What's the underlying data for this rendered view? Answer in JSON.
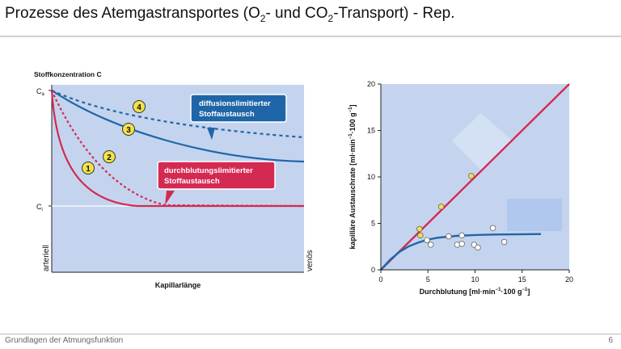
{
  "slide": {
    "title_main": "Prozesse des Atemgastransportes  (O",
    "title_sub1": "2",
    "title_mid": "- und CO",
    "title_sub2": "2",
    "title_end": "-Transport)  -  Rep.",
    "footer": "Grundlagen der Atmungsfunktion",
    "page_number": "6"
  },
  "colors": {
    "plot_bg": "#c4d4ee",
    "blue": "#1f66a8",
    "red": "#d42a52",
    "marker_yellow": "#f2e14a",
    "marker_white": "#ffffff"
  },
  "left_panel": {
    "ylabel": "Stoffkonzentration C",
    "y_tick_top": "C",
    "y_tick_top_sub": "a",
    "y_tick_mid": "C",
    "y_tick_mid_sub": "i",
    "xlabel": "Kapillarlänge",
    "left_edge_label": "arteriell",
    "right_edge_label": "venös",
    "callout_blue_line1": "diffusionslimitierter",
    "callout_blue_line2": "Stoffaustausch",
    "callout_red_line1": "durchblutungslimitierter",
    "callout_red_line2": "Stoffaustausch",
    "curve_labels": [
      "1",
      "2",
      "3",
      "4"
    ]
  },
  "chart_data": {
    "type": "scatter",
    "xlabel_text": "Durchblutung [ml·min",
    "xlabel_sup": "−1",
    "xlabel_rest": "·100 g",
    "xlabel_sup2": "−1",
    "xlabel_end": "]",
    "ylabel_text": "kapilläre Austauschrate [ml·min",
    "ylabel_sup": "−1",
    "ylabel_rest": "·100 g",
    "ylabel_sup2": "−1",
    "ylabel_end": "]",
    "xlim": [
      0,
      20
    ],
    "ylim": [
      0,
      20
    ],
    "x_ticks": [
      "0",
      "5",
      "10",
      "15",
      "20"
    ],
    "y_ticks": [
      "0",
      "5",
      "10",
      "15",
      "20"
    ],
    "series": [
      {
        "marker": "yellow",
        "points": [
          [
            4.1,
            4.4
          ],
          [
            4.2,
            3.7
          ],
          [
            6.4,
            6.8
          ],
          [
            9.6,
            10.1
          ]
        ]
      },
      {
        "marker": "white",
        "points": [
          [
            4.9,
            3.2
          ],
          [
            5.3,
            2.7
          ],
          [
            7.2,
            3.6
          ],
          [
            8.1,
            2.7
          ],
          [
            8.6,
            3.7
          ],
          [
            8.6,
            2.8
          ],
          [
            9.9,
            2.7
          ],
          [
            10.3,
            2.4
          ],
          [
            11.9,
            4.5
          ],
          [
            13.1,
            3.0
          ]
        ]
      }
    ],
    "lines": [
      {
        "name": "identity",
        "points": [
          [
            0,
            0
          ],
          [
            20,
            20
          ]
        ]
      },
      {
        "name": "plateau",
        "points": [
          [
            0,
            0
          ],
          [
            1,
            1.1
          ],
          [
            2,
            1.95
          ],
          [
            3,
            2.55
          ],
          [
            4,
            2.95
          ],
          [
            5,
            3.25
          ],
          [
            6,
            3.45
          ],
          [
            8,
            3.65
          ],
          [
            10,
            3.75
          ],
          [
            12,
            3.8
          ],
          [
            14,
            3.82
          ],
          [
            17,
            3.85
          ]
        ]
      }
    ]
  }
}
